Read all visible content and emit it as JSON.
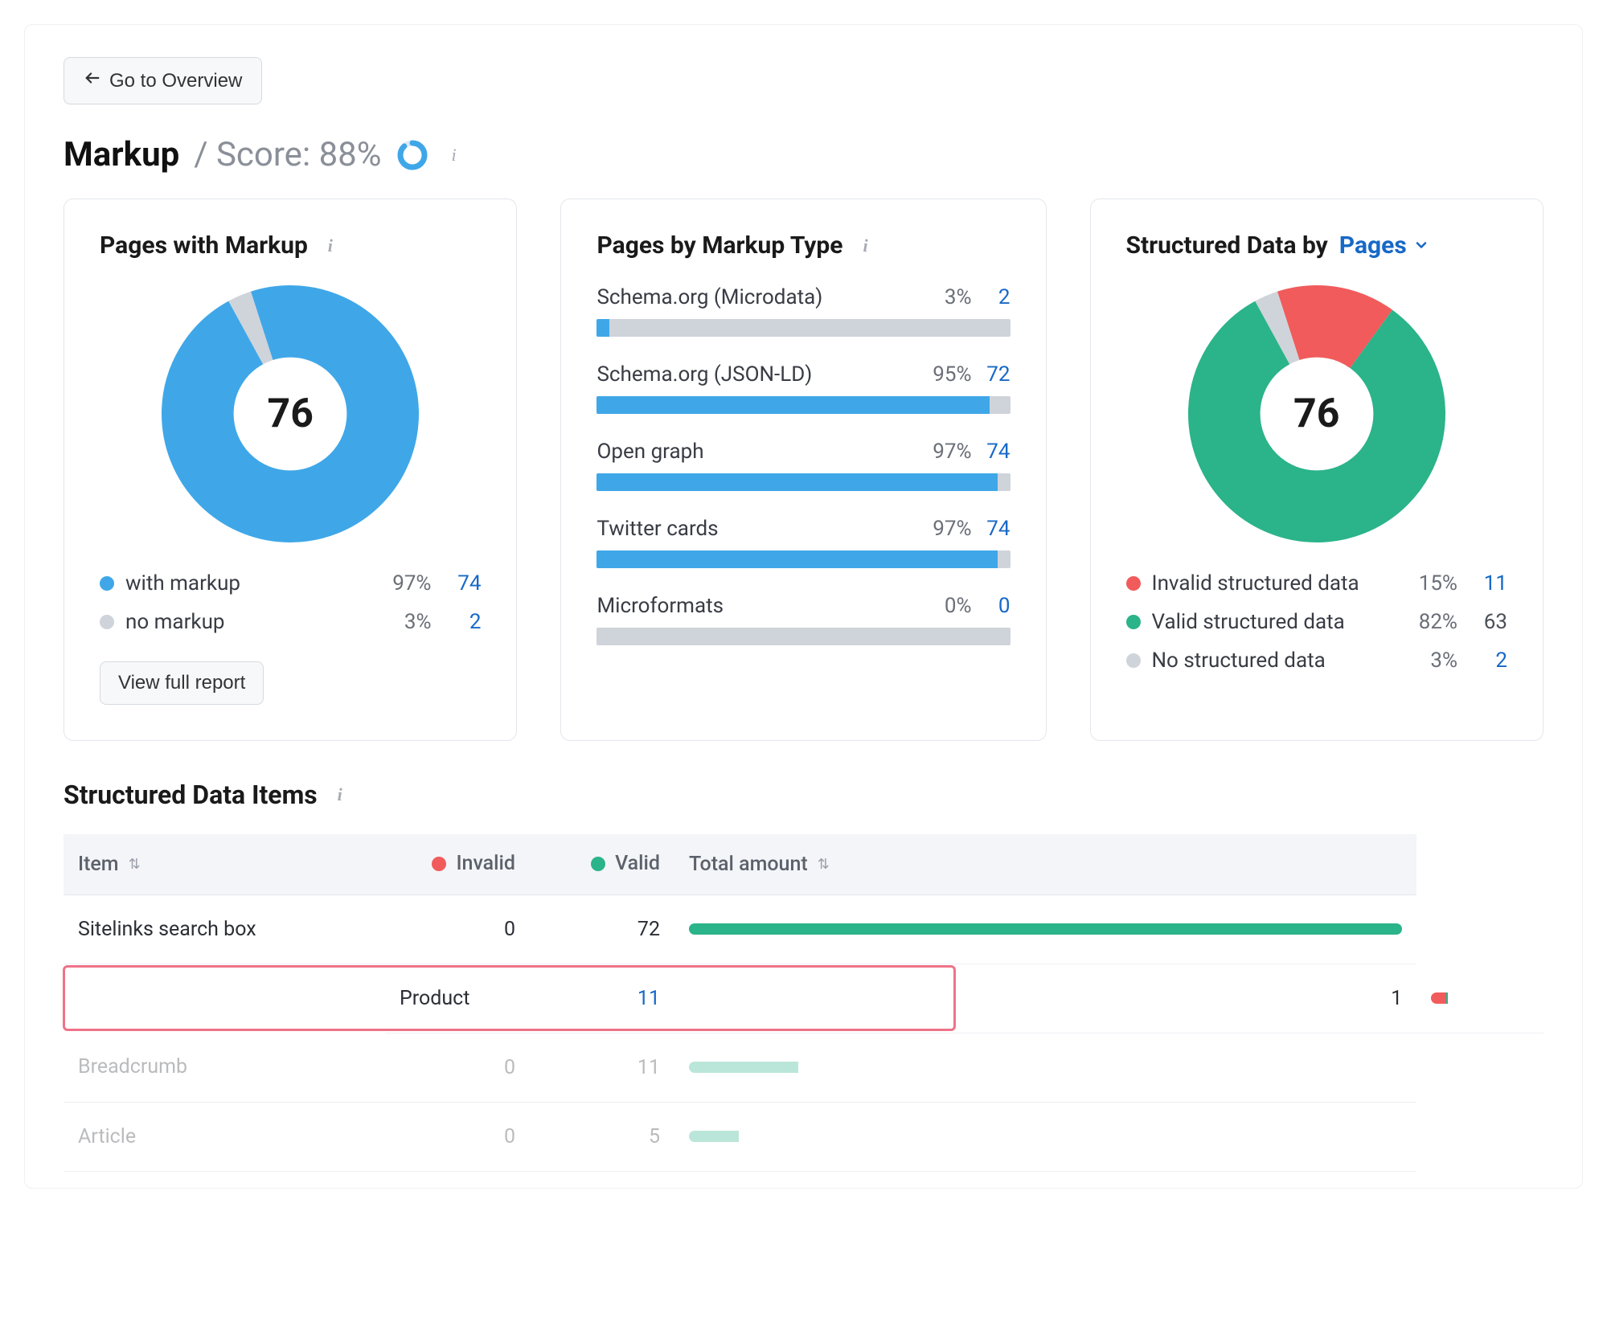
{
  "nav": {
    "back_label": "Go to Overview"
  },
  "header": {
    "title": "Markup",
    "score_prefix": "/ Score:",
    "score_value": "88%"
  },
  "colors": {
    "blue": "#3fa7e8",
    "grey": "#cfd3da",
    "green": "#2bb38a",
    "red": "#f15b5b",
    "link": "#1769c7",
    "highlight": "#ef7288"
  },
  "markup_card": {
    "title": "Pages with Markup",
    "center_value": "76",
    "donut": {
      "type": "donut",
      "segments": [
        {
          "pct": 97,
          "color": "#3fa7e8"
        },
        {
          "pct": 3,
          "color": "#cfd3da"
        }
      ],
      "thickness": 56
    },
    "legend": [
      {
        "label": "with markup",
        "pct": "97%",
        "count": "74",
        "color": "#3fa7e8",
        "count_linked": true
      },
      {
        "label": "no markup",
        "pct": "3%",
        "count": "2",
        "color": "#cfd3da",
        "count_linked": true
      }
    ],
    "button": "View full report"
  },
  "type_card": {
    "title": "Pages by Markup Type",
    "items": [
      {
        "label": "Schema.org (Microdata)",
        "pct": "3%",
        "count": "2",
        "fill_pct": 3
      },
      {
        "label": "Schema.org (JSON-LD)",
        "pct": "95%",
        "count": "72",
        "fill_pct": 95
      },
      {
        "label": "Open graph",
        "pct": "97%",
        "count": "74",
        "fill_pct": 97
      },
      {
        "label": "Twitter cards",
        "pct": "97%",
        "count": "74",
        "fill_pct": 97
      },
      {
        "label": "Microformats",
        "pct": "0%",
        "count": "0",
        "fill_pct": 0
      }
    ]
  },
  "structured_card": {
    "title_static": "Structured Data by",
    "title_dropdown": "Pages",
    "center_value": "76",
    "donut": {
      "type": "donut",
      "segments": [
        {
          "pct": 15,
          "color": "#f15b5b"
        },
        {
          "pct": 82,
          "color": "#2bb38a"
        },
        {
          "pct": 3,
          "color": "#cfd3da"
        }
      ],
      "thickness": 56
    },
    "legend": [
      {
        "label": "Invalid structured data",
        "pct": "15%",
        "count": "11",
        "color": "#f15b5b",
        "count_linked": true
      },
      {
        "label": "Valid structured data",
        "pct": "82%",
        "count": "63",
        "color": "#2bb38a",
        "count_linked": false
      },
      {
        "label": "No structured data",
        "pct": "3%",
        "count": "2",
        "color": "#cfd3da",
        "count_linked": true
      }
    ]
  },
  "items_section": {
    "title": "Structured Data Items",
    "columns": {
      "item": "Item",
      "invalid": "Invalid",
      "valid": "Valid",
      "total": "Total amount"
    },
    "max_total": 72,
    "rows": [
      {
        "item": "Sitelinks search box",
        "invalid": "0",
        "invalid_link": false,
        "valid": "72",
        "bar_invalid": 0,
        "bar_valid": 72,
        "dim": false,
        "highlight": false
      },
      {
        "item": "Product",
        "invalid": "11",
        "invalid_link": true,
        "valid": "1",
        "bar_invalid": 11,
        "bar_valid": 1,
        "dim": false,
        "highlight": true
      },
      {
        "item": "Breadcrumb",
        "invalid": "0",
        "invalid_link": false,
        "valid": "11",
        "bar_invalid": 0,
        "bar_valid": 11,
        "dim": true,
        "highlight": false
      },
      {
        "item": "Article",
        "invalid": "0",
        "invalid_link": false,
        "valid": "5",
        "bar_invalid": 0,
        "bar_valid": 5,
        "dim": true,
        "highlight": false
      }
    ]
  }
}
